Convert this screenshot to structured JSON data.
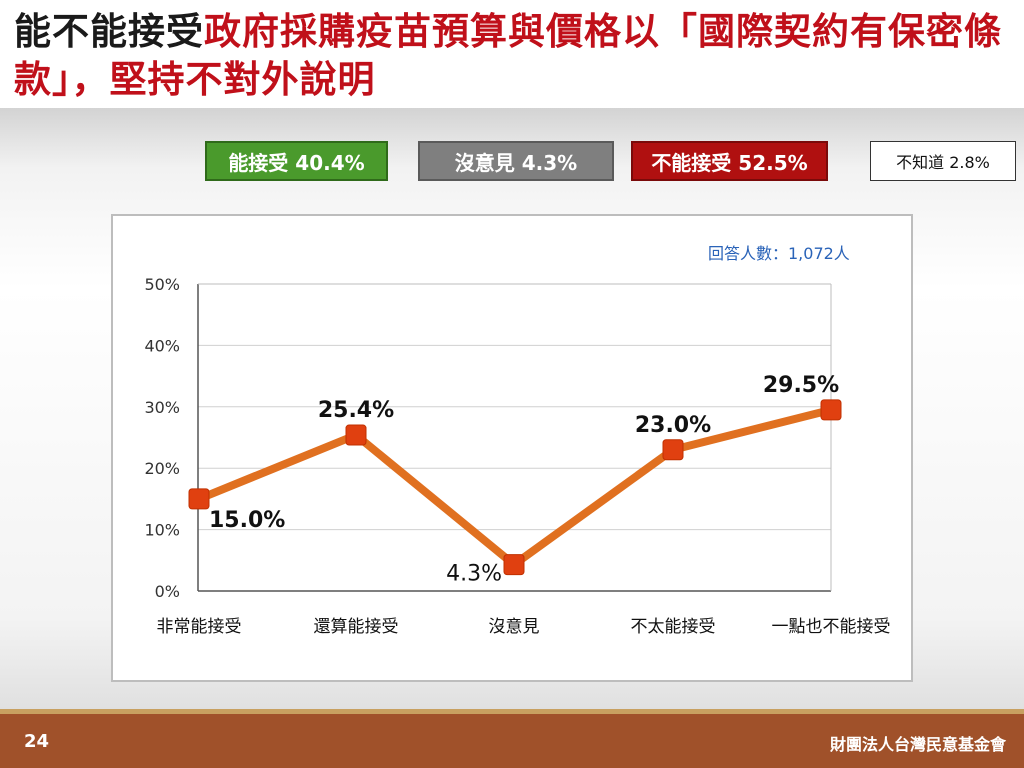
{
  "title": {
    "lead": "能不能接受",
    "rest": "政府採購疫苗預算與價格以「國際契約有保密條款」，堅持不對外說明"
  },
  "summary": {
    "accept": "能接受 40.4%",
    "no_opinion": "沒意見 4.3%",
    "reject": "不能接受 52.5%",
    "unknown": "不知道 2.8%"
  },
  "respondents": "回答人數：1,072人",
  "footer": {
    "page_number": "24",
    "organization": "財團法人台灣民意基金會"
  },
  "colors": {
    "accept_green": "#4a9a2c",
    "no_opinion_gray": "#7f7f7f",
    "reject_red": "#b01010",
    "line_orange": "#e07020",
    "marker_red": "#e04010",
    "title_red": "#c0101a",
    "footer_brown": "#a0512a"
  },
  "chart_data": {
    "type": "line",
    "categories": [
      "非常能接受",
      "還算能接受",
      "沒意見",
      "不太能接受",
      "一點也不能接受"
    ],
    "values": [
      15.0,
      25.4,
      4.3,
      23.0,
      29.5
    ],
    "value_labels": [
      "15.0%",
      "25.4%",
      "4.3%",
      "23.0%",
      "29.5%"
    ],
    "y_ticks": [
      "0%",
      "10%",
      "20%",
      "30%",
      "40%",
      "50%"
    ],
    "ylim": [
      0,
      50
    ],
    "grid": true,
    "title": "",
    "xlabel": "",
    "ylabel": ""
  }
}
